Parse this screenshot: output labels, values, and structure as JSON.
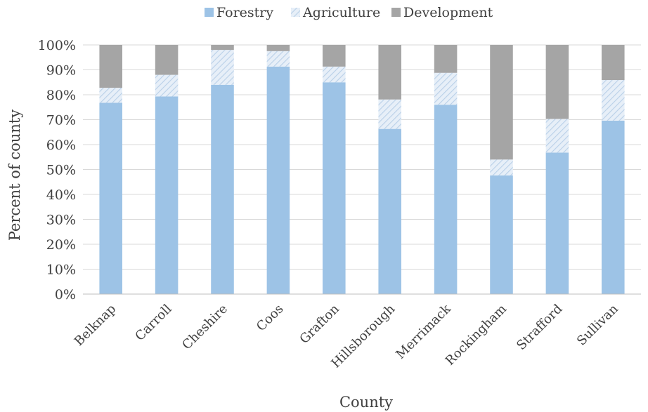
{
  "chart_data": {
    "type": "bar",
    "stacked": true,
    "title": "",
    "xlabel": "County",
    "ylabel": "Percent of county",
    "ylim": [
      0,
      100
    ],
    "yticks": [
      "0%",
      "10%",
      "20%",
      "30%",
      "40%",
      "50%",
      "60%",
      "70%",
      "80%",
      "90%",
      "100%"
    ],
    "grid": true,
    "legend_position": "top",
    "categories": [
      "Belknap",
      "Carroll",
      "Cheshire",
      "Coos",
      "Grafton",
      "Hillsborough",
      "Merrimack",
      "Rockingham",
      "Strafford",
      "Sullivan"
    ],
    "series": [
      {
        "name": "Forestry",
        "color": "#9dc3e6",
        "pattern": "solid",
        "values": [
          76.8,
          79.3,
          84.0,
          91.3,
          85.0,
          66.3,
          76.0,
          47.6,
          56.8,
          69.6
        ]
      },
      {
        "name": "Agriculture",
        "color": "#dbe7f3",
        "pattern": "diagonal-stripes",
        "values": [
          6.0,
          8.7,
          14.0,
          6.2,
          6.3,
          11.8,
          12.8,
          6.4,
          13.5,
          16.3
        ]
      },
      {
        "name": "Development",
        "color": "#a5a5a5",
        "pattern": "solid",
        "values": [
          17.2,
          12.0,
          2.0,
          2.5,
          8.7,
          21.9,
          11.2,
          46.0,
          29.7,
          14.1
        ]
      }
    ]
  }
}
